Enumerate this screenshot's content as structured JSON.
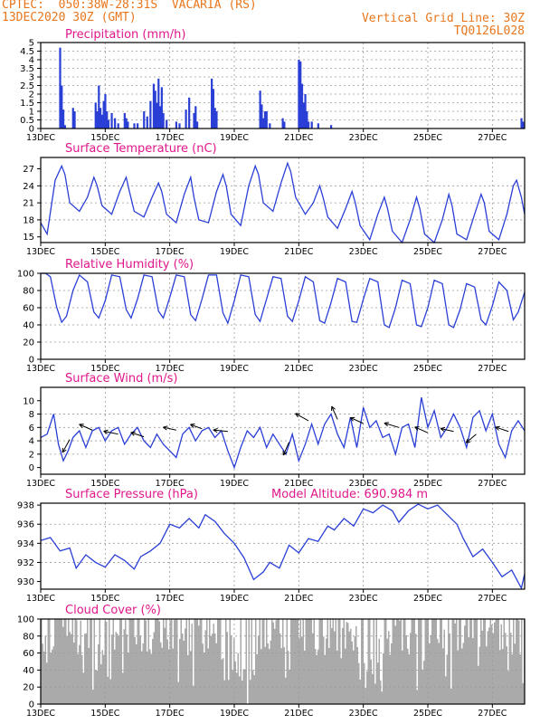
{
  "header": {
    "line1": "CPTEC:  050:38W-28:31S  VACARIA (RS)",
    "line2": "13DEC2020 30Z (GMT)",
    "grid_note": "Vertical Grid Line: 30Z",
    "model_code": "TQ0126L028"
  },
  "x_labels": [
    "13DEC",
    "15DEC",
    "17DEC",
    "19DEC",
    "21DEC",
    "23DEC",
    "25DEC",
    "27DEC"
  ],
  "x_days": [
    0,
    2,
    4,
    6,
    8,
    10,
    12,
    14
  ],
  "x_range_days": [
    0,
    15.0
  ],
  "panel_titles": {
    "precip": "Precipitation (mm/h)",
    "temp": "Surface Temperature (nC)",
    "rh": "Relative Humidity (%)",
    "wind": "Surface Wind (m/s)",
    "pres": "Surface Pressure (hPa)",
    "cloud": "Cloud Cover (%)"
  },
  "model_altitude": "Model Altitude: 690.984  m",
  "colors": {
    "line": "#2a3fd6",
    "bar": "#2a3fd6",
    "cloud": "#aaaaaa",
    "title": "#e0178a",
    "header": "#e8761c"
  },
  "chart_data": [
    {
      "type": "bar",
      "title": "Precipitation (mm/h)",
      "ylim": [
        0,
        5
      ],
      "yticks": [
        "0",
        "0.5",
        "1",
        "1.5",
        "2",
        "2.5",
        "3",
        "3.5",
        "4",
        "4.5",
        "5"
      ],
      "x": [
        0.6,
        0.65,
        0.7,
        0.75,
        1.0,
        1.05,
        1.7,
        1.75,
        1.8,
        1.85,
        1.9,
        1.95,
        2.0,
        2.05,
        2.1,
        2.2,
        2.3,
        2.4,
        2.6,
        2.65,
        2.7,
        2.9,
        3.0,
        3.2,
        3.3,
        3.4,
        3.5,
        3.55,
        3.6,
        3.65,
        3.7,
        3.75,
        3.8,
        3.9,
        4.2,
        4.3,
        4.5,
        4.6,
        4.75,
        4.8,
        4.85,
        5.3,
        5.35,
        5.4,
        5.45,
        6.8,
        6.85,
        6.9,
        6.95,
        7.0,
        7.1,
        7.5,
        7.55,
        8.0,
        8.05,
        8.1,
        8.15,
        8.2,
        8.25,
        8.3,
        8.4,
        8.6,
        9.0,
        14.9,
        14.95
      ],
      "values": [
        4.7,
        2.5,
        1.1,
        0.2,
        1.2,
        1.0,
        1.5,
        1.0,
        2.5,
        1.2,
        0.8,
        1.6,
        2.0,
        1.0,
        0.5,
        0.9,
        0.6,
        0.3,
        0.9,
        0.6,
        0.4,
        0.3,
        0.3,
        1.0,
        0.7,
        1.6,
        2.6,
        2.2,
        1.5,
        2.9,
        1.3,
        2.4,
        0.9,
        0.5,
        0.4,
        0.3,
        1.1,
        1.8,
        0.9,
        1.3,
        0.4,
        2.9,
        2.3,
        1.2,
        1.0,
        2.2,
        1.4,
        0.6,
        1.0,
        1.0,
        0.3,
        0.6,
        0.4,
        4.0,
        3.9,
        2.6,
        1.5,
        2.0,
        1.0,
        0.4,
        0.4,
        0.3,
        0.2,
        0.6,
        0.4
      ]
    },
    {
      "type": "line",
      "title": "Surface Temperature (nC)",
      "ylim": [
        14,
        29
      ],
      "yticks": [
        "15",
        "18",
        "21",
        "24",
        "27"
      ],
      "x": [
        0,
        0.2,
        0.45,
        0.65,
        0.75,
        0.9,
        1.2,
        1.45,
        1.65,
        1.75,
        1.9,
        2.2,
        2.45,
        2.65,
        2.75,
        2.9,
        3.2,
        3.45,
        3.65,
        3.75,
        3.9,
        4.2,
        4.45,
        4.65,
        4.75,
        4.9,
        5.2,
        5.45,
        5.65,
        5.75,
        5.9,
        6.2,
        6.45,
        6.65,
        6.75,
        6.9,
        7.2,
        7.45,
        7.65,
        7.75,
        7.9,
        8.2,
        8.45,
        8.65,
        8.75,
        8.9,
        9.2,
        9.45,
        9.65,
        9.75,
        9.9,
        10.2,
        10.45,
        10.65,
        10.75,
        10.9,
        11.2,
        11.45,
        11.65,
        11.75,
        11.9,
        12.2,
        12.45,
        12.65,
        12.75,
        12.9,
        13.2,
        13.45,
        13.65,
        13.75,
        13.9,
        14.2,
        14.45,
        14.65,
        14.75,
        14.9,
        15.0
      ],
      "values": [
        17.5,
        15.5,
        25,
        27.5,
        26,
        21,
        19.5,
        22,
        25.5,
        24,
        20.5,
        19,
        23,
        25.5,
        23,
        19.5,
        18.5,
        22,
        24.5,
        23,
        19,
        17.5,
        22.5,
        25.5,
        22,
        18,
        17.5,
        23,
        26,
        24,
        19,
        17,
        24,
        27.5,
        26,
        21,
        19.5,
        24.5,
        28,
        26.5,
        22,
        19,
        21,
        24,
        22,
        18.5,
        16.5,
        20,
        23,
        21,
        17,
        14.5,
        19,
        22,
        20,
        16,
        14,
        18,
        22,
        20,
        15.5,
        14,
        18,
        22.5,
        20.5,
        15.5,
        14.5,
        19,
        22.5,
        21,
        16,
        14.5,
        19,
        24,
        25,
        22,
        19
      ]
    },
    {
      "type": "line",
      "title": "Relative Humidity (%)",
      "ylim": [
        0,
        100
      ],
      "yticks": [
        "0",
        "20",
        "40",
        "60",
        "80",
        "100"
      ],
      "x": [
        0,
        0.15,
        0.3,
        0.5,
        0.65,
        0.8,
        1.0,
        1.2,
        1.45,
        1.65,
        1.8,
        2.0,
        2.2,
        2.45,
        2.65,
        2.8,
        3.0,
        3.2,
        3.45,
        3.65,
        3.8,
        4.0,
        4.2,
        4.45,
        4.65,
        4.8,
        5.0,
        5.2,
        5.45,
        5.65,
        5.8,
        6.0,
        6.2,
        6.45,
        6.65,
        6.8,
        7.0,
        7.2,
        7.45,
        7.65,
        7.8,
        8.0,
        8.2,
        8.45,
        8.65,
        8.8,
        9.0,
        9.2,
        9.45,
        9.65,
        9.8,
        10.0,
        10.2,
        10.45,
        10.65,
        10.8,
        11.0,
        11.2,
        11.45,
        11.65,
        11.8,
        12.0,
        12.2,
        12.45,
        12.65,
        12.8,
        13.0,
        13.2,
        13.45,
        13.65,
        13.8,
        14.0,
        14.2,
        14.45,
        14.65,
        14.8,
        15.0
      ],
      "values": [
        100,
        100,
        96,
        60,
        43,
        50,
        80,
        98,
        90,
        55,
        48,
        68,
        98,
        96,
        58,
        48,
        70,
        98,
        96,
        56,
        48,
        72,
        98,
        96,
        52,
        45,
        70,
        98,
        98,
        54,
        42,
        68,
        98,
        96,
        52,
        44,
        70,
        96,
        94,
        50,
        44,
        68,
        96,
        90,
        45,
        42,
        66,
        94,
        90,
        44,
        43,
        70,
        94,
        90,
        40,
        37,
        60,
        92,
        88,
        40,
        38,
        60,
        92,
        88,
        40,
        37,
        58,
        88,
        84,
        46,
        40,
        62,
        90,
        80,
        46,
        55,
        78
      ]
    },
    {
      "type": "line",
      "title": "Surface Wind (m/s)",
      "ylim": [
        -1,
        12
      ],
      "yticks": [
        "0",
        "2",
        "4",
        "6",
        "8",
        "10"
      ],
      "x": [
        0,
        0.2,
        0.4,
        0.55,
        0.7,
        0.85,
        1.0,
        1.2,
        1.4,
        1.6,
        1.8,
        2.0,
        2.2,
        2.4,
        2.6,
        2.8,
        3.0,
        3.2,
        3.4,
        3.6,
        3.8,
        4.0,
        4.2,
        4.4,
        4.6,
        4.8,
        5.0,
        5.2,
        5.4,
        5.6,
        5.8,
        6.0,
        6.2,
        6.4,
        6.6,
        6.8,
        7.0,
        7.2,
        7.4,
        7.6,
        7.8,
        8.0,
        8.2,
        8.4,
        8.6,
        8.8,
        9.0,
        9.2,
        9.4,
        9.6,
        9.8,
        10.0,
        10.2,
        10.4,
        10.6,
        10.8,
        11.0,
        11.2,
        11.4,
        11.6,
        11.8,
        12.0,
        12.2,
        12.4,
        12.6,
        12.8,
        13.0,
        13.2,
        13.4,
        13.6,
        13.8,
        14.0,
        14.2,
        14.4,
        14.6,
        14.8,
        15.0
      ],
      "values": [
        4.5,
        5.0,
        8.0,
        3.5,
        1.0,
        2.5,
        4.5,
        5.5,
        3.0,
        5.5,
        6.0,
        4.0,
        5.5,
        6.0,
        3.5,
        5.0,
        6.0,
        4.0,
        3.0,
        5.0,
        3.5,
        2.5,
        1.5,
        5.0,
        6.0,
        4.0,
        5.5,
        6.0,
        4.5,
        5.5,
        2.5,
        0.0,
        3.0,
        5.5,
        4.5,
        6.0,
        3.0,
        5.0,
        3.5,
        2.0,
        5.0,
        1.0,
        3.5,
        6.5,
        3.5,
        6.5,
        8.0,
        5.0,
        3.0,
        7.5,
        3.0,
        9.0,
        6.0,
        7.0,
        4.5,
        5.0,
        2.0,
        6.0,
        6.5,
        3.0,
        10.5,
        6.0,
        8.5,
        4.5,
        6.0,
        8.0,
        6.0,
        3.0,
        7.5,
        8.5,
        5.5,
        8.0,
        3.5,
        1.5,
        5.5,
        7.0,
        5.5
      ],
      "arrows": [
        {
          "x": 0.9,
          "speed": 4.2,
          "dx": -0.5,
          "dy": 0.9
        },
        {
          "x": 1.6,
          "speed": 5.6,
          "dx": -0.9,
          "dy": -0.4
        },
        {
          "x": 2.4,
          "speed": 5.0,
          "dx": -1.0,
          "dy": -0.2
        },
        {
          "x": 3.2,
          "speed": 4.6,
          "dx": -0.9,
          "dy": -0.3
        },
        {
          "x": 4.2,
          "speed": 5.6,
          "dx": -0.9,
          "dy": -0.2
        },
        {
          "x": 5.0,
          "speed": 5.8,
          "dx": -0.8,
          "dy": -0.3
        },
        {
          "x": 5.8,
          "speed": 5.4,
          "dx": -1.0,
          "dy": -0.1
        },
        {
          "x": 7.7,
          "speed": 3.8,
          "dx": -0.4,
          "dy": 0.9
        },
        {
          "x": 8.3,
          "speed": 7.0,
          "dx": -0.9,
          "dy": -0.5
        },
        {
          "x": 9.2,
          "speed": 7.2,
          "dx": -0.4,
          "dy": -0.9
        },
        {
          "x": 10.0,
          "speed": 6.6,
          "dx": -0.9,
          "dy": -0.4
        },
        {
          "x": 11.1,
          "speed": 6.0,
          "dx": -1.0,
          "dy": -0.3
        },
        {
          "x": 12.0,
          "speed": 5.2,
          "dx": -0.9,
          "dy": -0.4
        },
        {
          "x": 12.8,
          "speed": 5.4,
          "dx": -0.9,
          "dy": -0.2
        },
        {
          "x": 13.5,
          "speed": 5.0,
          "dx": -0.7,
          "dy": 0.6
        },
        {
          "x": 14.5,
          "speed": 5.4,
          "dx": -0.9,
          "dy": -0.3
        }
      ]
    },
    {
      "type": "line",
      "title": "Surface Pressure (hPa)",
      "ylim": [
        929.2,
        938.2
      ],
      "yticks": [
        "930",
        "932",
        "934",
        "936",
        "938"
      ],
      "x": [
        0,
        0.3,
        0.6,
        0.9,
        1.1,
        1.4,
        1.7,
        2.0,
        2.3,
        2.6,
        2.9,
        3.1,
        3.4,
        3.7,
        4.0,
        4.3,
        4.6,
        4.9,
        5.1,
        5.4,
        5.7,
        6.0,
        6.3,
        6.6,
        6.9,
        7.1,
        7.4,
        7.7,
        8.0,
        8.3,
        8.6,
        8.9,
        9.1,
        9.4,
        9.7,
        10.0,
        10.3,
        10.6,
        10.9,
        11.1,
        11.4,
        11.7,
        12.0,
        12.3,
        12.6,
        12.9,
        13.1,
        13.4,
        13.7,
        14.0,
        14.3,
        14.6,
        14.9,
        15.0
      ],
      "values": [
        934.3,
        934.6,
        933.2,
        933.5,
        931.4,
        932.8,
        932.0,
        931.5,
        932.8,
        932.2,
        931.3,
        932.6,
        933.2,
        934.0,
        936.0,
        935.6,
        936.6,
        935.6,
        937.0,
        936.3,
        935.0,
        934.0,
        932.5,
        930.2,
        931.0,
        932.0,
        931.4,
        933.8,
        933.0,
        934.5,
        934.2,
        935.8,
        935.4,
        936.6,
        935.8,
        937.6,
        937.2,
        938.0,
        937.4,
        936.2,
        937.4,
        938.1,
        937.6,
        938.0,
        937.0,
        936.0,
        934.5,
        932.6,
        933.4,
        932.0,
        930.5,
        931.2,
        929.3,
        930.8
      ]
    },
    {
      "type": "area",
      "title": "Cloud Cover (%)",
      "ylim": [
        0,
        100
      ],
      "yticks": [
        "0",
        "20",
        "40",
        "60",
        "80",
        "100"
      ]
    }
  ]
}
